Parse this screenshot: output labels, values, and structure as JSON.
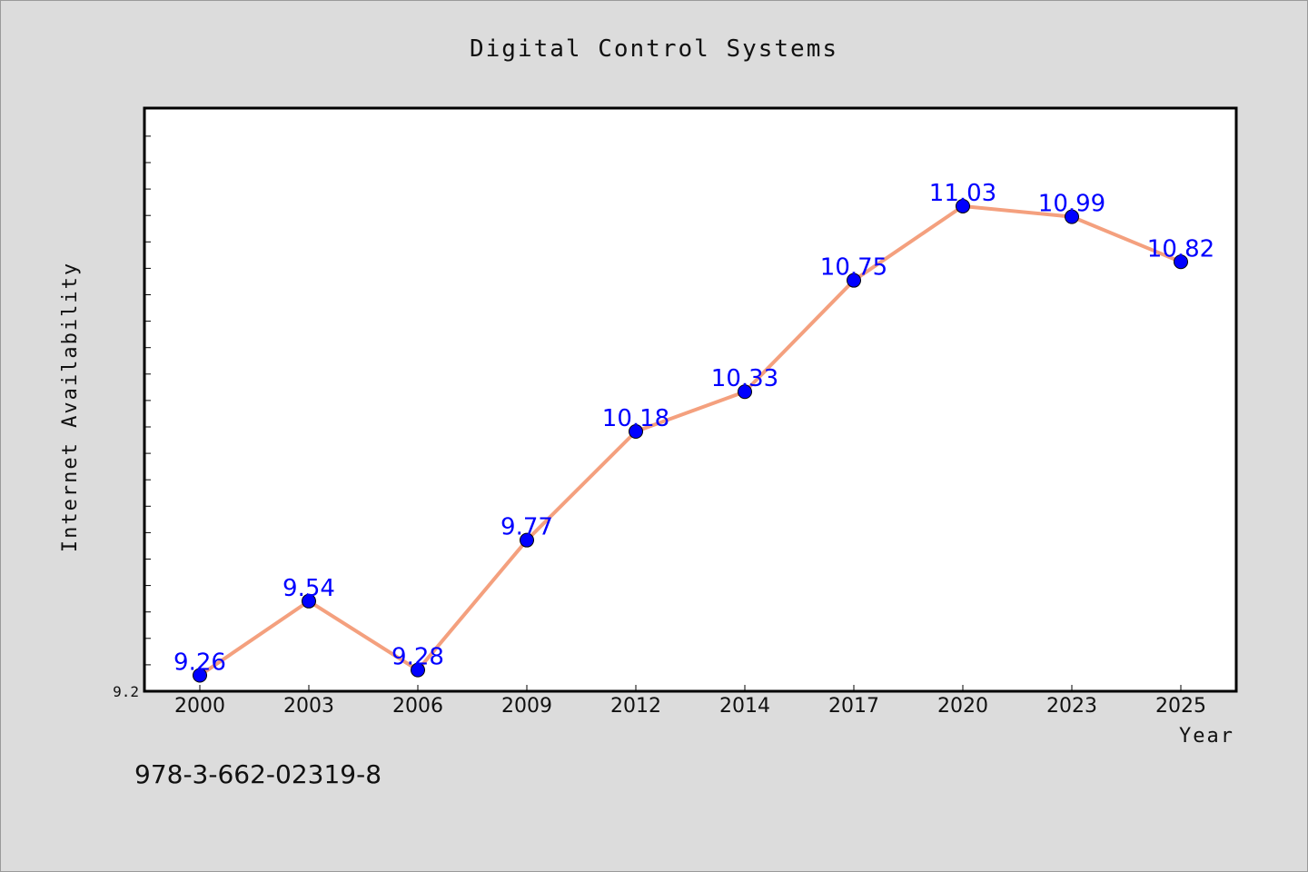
{
  "chart_data": {
    "type": "line",
    "title": "Digital Control Systems",
    "xlabel": "Year",
    "ylabel": "Internet Availability",
    "categories": [
      "2000",
      "2003",
      "2006",
      "2009",
      "2012",
      "2014",
      "2017",
      "2020",
      "2023",
      "2025"
    ],
    "series": [
      {
        "values": [
          9.26,
          9.54,
          9.28,
          9.77,
          10.18,
          10.33,
          10.75,
          11.03,
          10.99,
          10.82
        ],
        "data_labels": [
          "9.26",
          "9.54",
          "9.28",
          "9.77",
          "10.18",
          "10.33",
          "10.75",
          "11.03",
          "10.99",
          "10.82"
        ],
        "line_color": "#f4a07e",
        "marker_color": "#0000ff"
      }
    ],
    "ylim": [
      9.2,
      11.4
    ],
    "yticks_labeled": [
      "9.2"
    ],
    "grid": false,
    "legend": "none"
  },
  "footer_code": "978-3-662-02319-8",
  "colors": {
    "background": "#dcdcdc",
    "plot_background": "#ffffff",
    "line": "#f4a07e",
    "marker": "#0000ff",
    "data_label": "#0000ff"
  }
}
